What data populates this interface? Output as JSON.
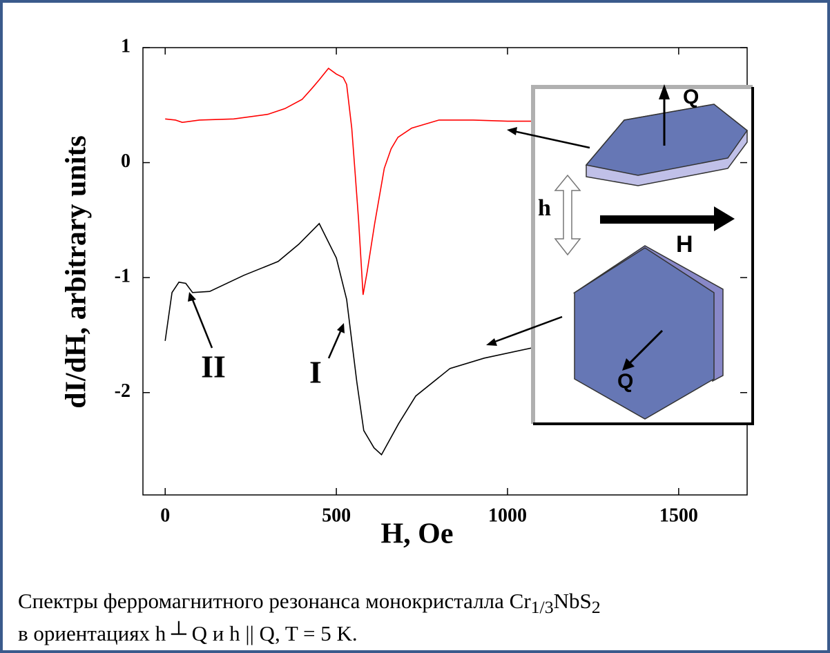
{
  "chart_data": {
    "type": "line",
    "xlabel": "H, Oe",
    "ylabel": "dI/dH, arbitrary units",
    "xlim": [
      -65,
      1700
    ],
    "ylim": [
      -2.89,
      1
    ],
    "xticks": [
      0,
      500,
      1000,
      1500
    ],
    "yticks": [
      -2,
      -1,
      0,
      1
    ],
    "series": [
      {
        "color": "#ff0000",
        "x": [
          0,
          30,
          50,
          100,
          200,
          300,
          350,
          400,
          430,
          450,
          477,
          500,
          520,
          530,
          545,
          555,
          565,
          578,
          590,
          612,
          640,
          660,
          680,
          720,
          800,
          900,
          1000,
          1080
        ],
        "values": [
          0.38,
          0.37,
          0.35,
          0.37,
          0.38,
          0.42,
          0.47,
          0.55,
          0.65,
          0.72,
          0.82,
          0.77,
          0.74,
          0.68,
          0.3,
          -0.1,
          -0.5,
          -1.15,
          -0.95,
          -0.53,
          -0.05,
          0.12,
          0.22,
          0.3,
          0.37,
          0.37,
          0.36,
          0.36
        ]
      },
      {
        "color": "#000000",
        "x": [
          0,
          20,
          40,
          60,
          80,
          130,
          230,
          330,
          390,
          450,
          500,
          530,
          560,
          580,
          610,
          632,
          682,
          732,
          832,
          932,
          1073
        ],
        "values": [
          -1.55,
          -1.13,
          -1.04,
          -1.05,
          -1.13,
          -1.12,
          -0.98,
          -0.86,
          -0.71,
          -0.53,
          -0.83,
          -1.19,
          -1.91,
          -2.33,
          -2.48,
          -2.54,
          -2.27,
          -2.03,
          -1.79,
          -1.7,
          -1.61
        ]
      }
    ],
    "annotations": [
      "II",
      "I"
    ],
    "inset_labels": [
      "Q",
      "h",
      "H",
      "Q"
    ],
    "caption": [
      "Спектры ферромагнитного резонанса монокристалла Cr",
      "1/3",
      "NbS",
      "2",
      "в ориентациях h ",
      "┴",
      " Q и h || Q, T = 5 K."
    ]
  }
}
